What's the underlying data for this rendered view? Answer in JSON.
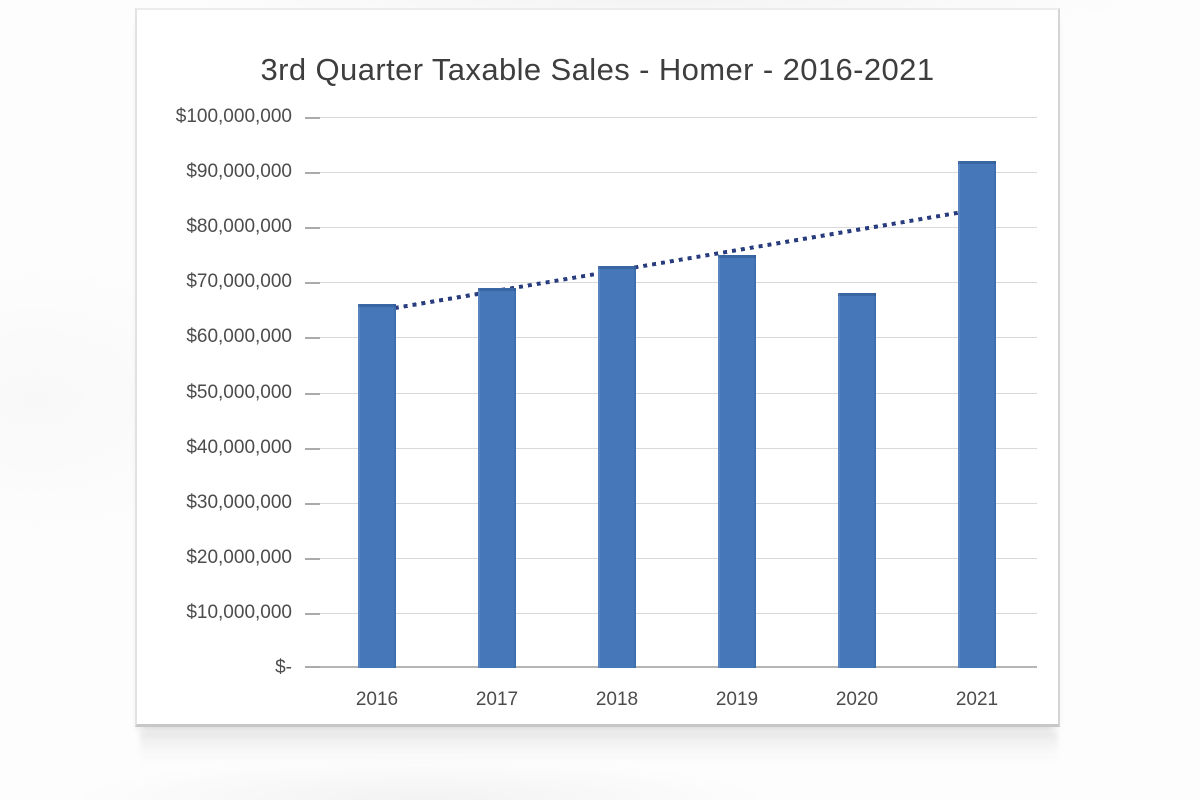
{
  "chart_data": {
    "type": "bar",
    "title": "3rd Quarter Taxable Sales - Homer - 2016-2021",
    "xlabel": "",
    "ylabel": "",
    "categories": [
      "2016",
      "2017",
      "2018",
      "2019",
      "2020",
      "2021"
    ],
    "values": [
      66000000,
      69000000,
      73000000,
      75000000,
      68000000,
      92000000
    ],
    "ylim": [
      0,
      100000000
    ],
    "grid": true,
    "legend": "none",
    "bar_color": "#4678b9",
    "y_ticks": [
      {
        "value": 100000000,
        "label": "$100,000,000"
      },
      {
        "value": 90000000,
        "label": "$90,000,000"
      },
      {
        "value": 80000000,
        "label": "$80,000,000"
      },
      {
        "value": 70000000,
        "label": "$70,000,000"
      },
      {
        "value": 60000000,
        "label": "$60,000,000"
      },
      {
        "value": 50000000,
        "label": "$50,000,000"
      },
      {
        "value": 40000000,
        "label": "$40,000,000"
      },
      {
        "value": 30000000,
        "label": "$30,000,000"
      },
      {
        "value": 20000000,
        "label": "$20,000,000"
      },
      {
        "value": 10000000,
        "label": "$10,000,000"
      },
      {
        "value": 0,
        "label": "$-"
      }
    ],
    "trendline": {
      "type": "linear",
      "style": "dotted",
      "color": "#283c7e",
      "start_value": 64800000,
      "end_value": 83200000
    }
  }
}
